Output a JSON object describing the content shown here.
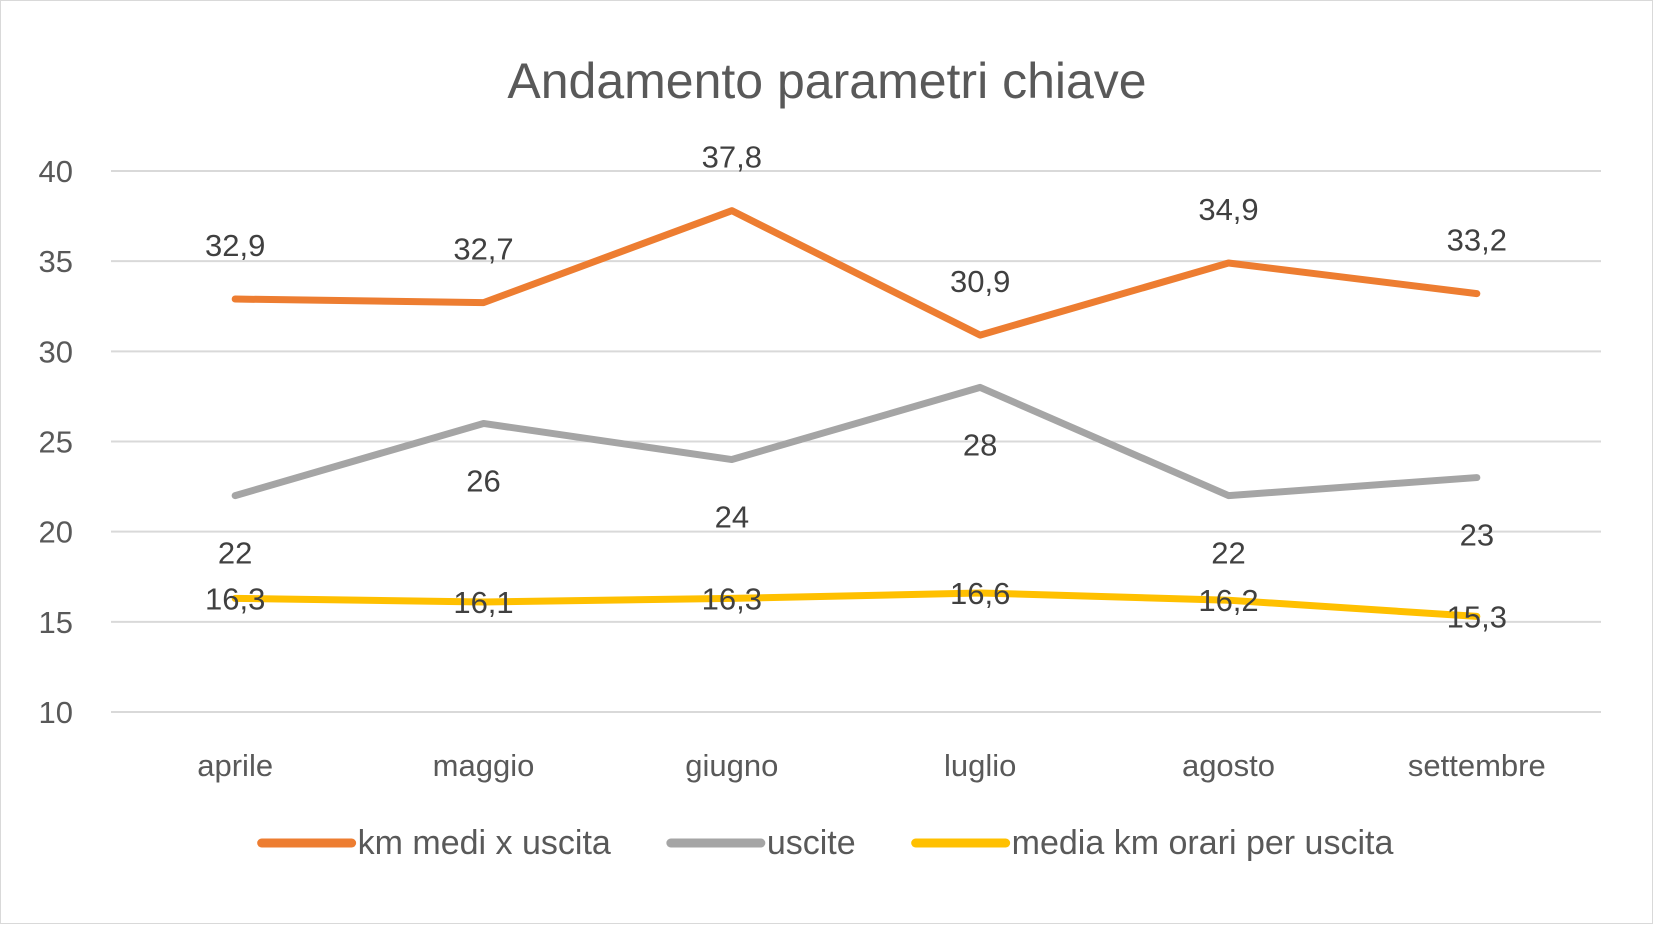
{
  "chart_data": {
    "type": "line",
    "title": "Andamento parametri chiave",
    "xlabel": "",
    "ylabel": "",
    "categories": [
      "aprile",
      "maggio",
      "giugno",
      "luglio",
      "agosto",
      "settembre"
    ],
    "ylim": [
      10,
      40
    ],
    "yticks": [
      10,
      15,
      20,
      25,
      30,
      35,
      40
    ],
    "grid": true,
    "legend_position": "bottom",
    "series": [
      {
        "name": "km medi x uscita",
        "color": "#ED7D31",
        "values": [
          32.9,
          32.7,
          37.8,
          30.9,
          34.9,
          33.2
        ],
        "labels": [
          "32,9",
          "32,7",
          "37,8",
          "30,9",
          "34,9",
          "33,2"
        ],
        "label_position": "above"
      },
      {
        "name": "uscite",
        "color": "#A5A5A5",
        "values": [
          22,
          26,
          24,
          28,
          22,
          23
        ],
        "labels": [
          "22",
          "26",
          "24",
          "28",
          "22",
          "23"
        ],
        "label_position": "below"
      },
      {
        "name": "media km orari per uscita",
        "color": "#FFC000",
        "values": [
          16.3,
          16.1,
          16.3,
          16.6,
          16.2,
          15.3
        ],
        "labels": [
          "16,3",
          "16,1",
          "16,3",
          "16,6",
          "16,2",
          "15,3"
        ],
        "label_position": "center"
      }
    ]
  }
}
